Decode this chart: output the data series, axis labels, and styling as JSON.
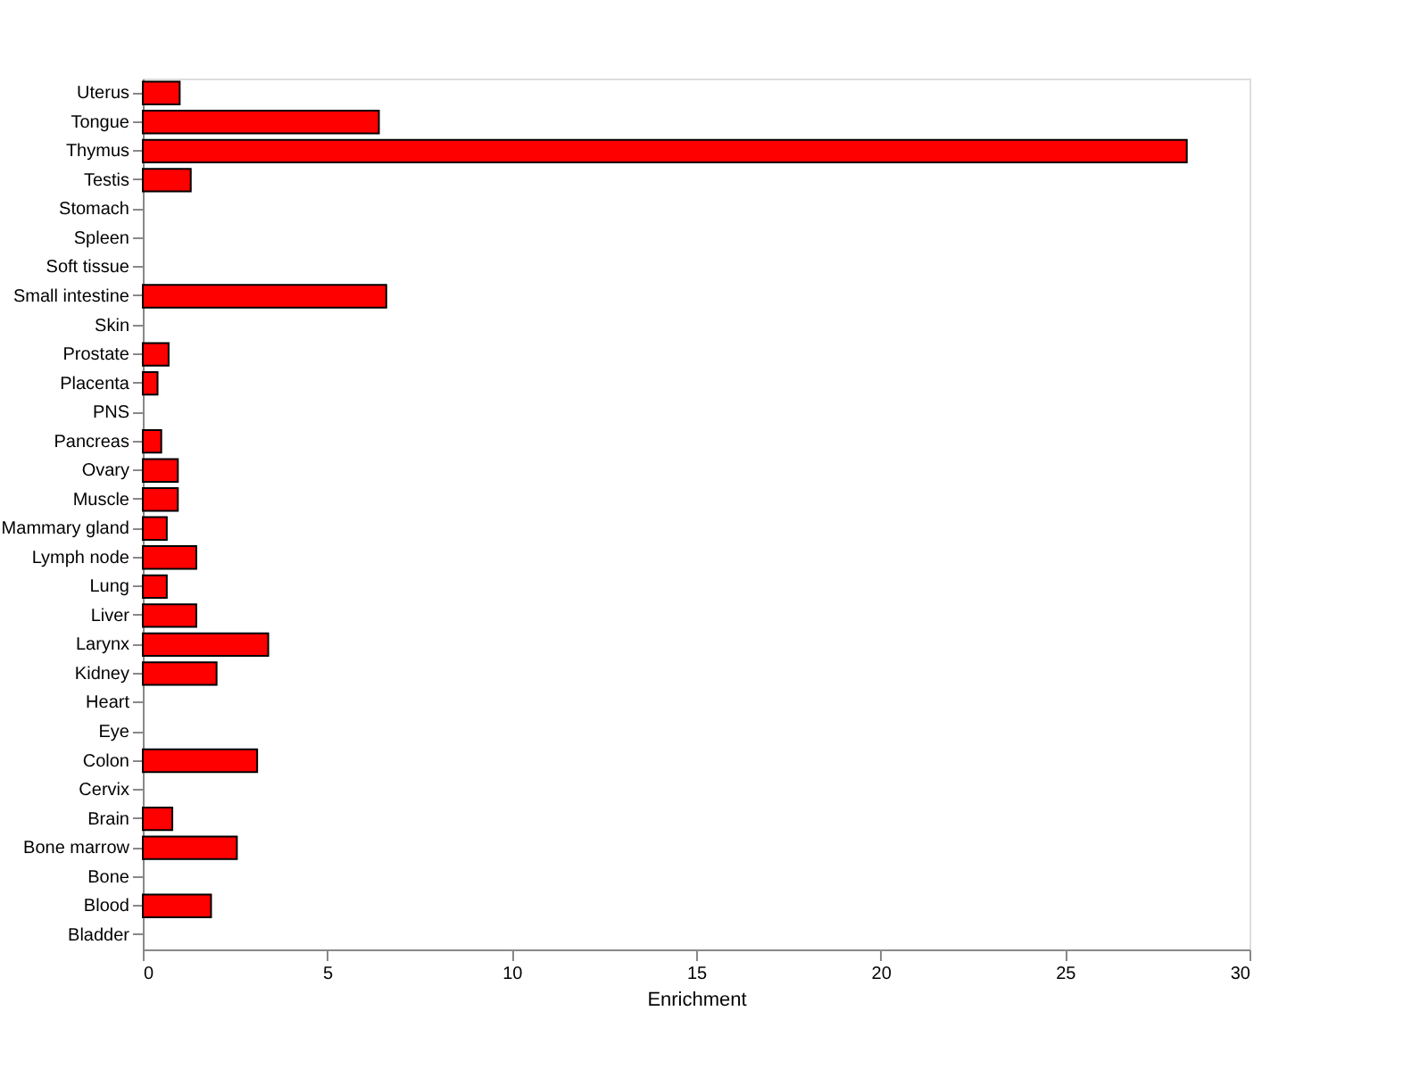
{
  "chart_data": {
    "type": "bar",
    "orientation": "horizontal",
    "xlabel": "Enrichment",
    "categories": [
      "Uterus",
      "Tongue",
      "Thymus",
      "Testis",
      "Stomach",
      "Spleen",
      "Soft tissue",
      "Small intestine",
      "Skin",
      "Prostate",
      "Placenta",
      "PNS",
      "Pancreas",
      "Ovary",
      "Muscle",
      "Mammary gland",
      "Lymph node",
      "Lung",
      "Liver",
      "Larynx",
      "Kidney",
      "Heart",
      "Eye",
      "Colon",
      "Cervix",
      "Brain",
      "Bone marrow",
      "Bone",
      "Blood",
      "Bladder"
    ],
    "values": [
      1.0,
      6.4,
      28.3,
      1.3,
      0,
      0,
      0,
      6.6,
      0,
      0.7,
      0.4,
      0,
      0.5,
      0.95,
      0.95,
      0.65,
      1.45,
      0.65,
      1.45,
      3.4,
      2.0,
      0,
      0,
      3.1,
      0,
      0.8,
      2.55,
      0,
      1.85,
      0
    ],
    "color": "#ff0000",
    "xlim": [
      0,
      30
    ],
    "xticks": [
      0,
      5,
      10,
      15,
      20,
      25,
      30
    ],
    "grid": false
  }
}
